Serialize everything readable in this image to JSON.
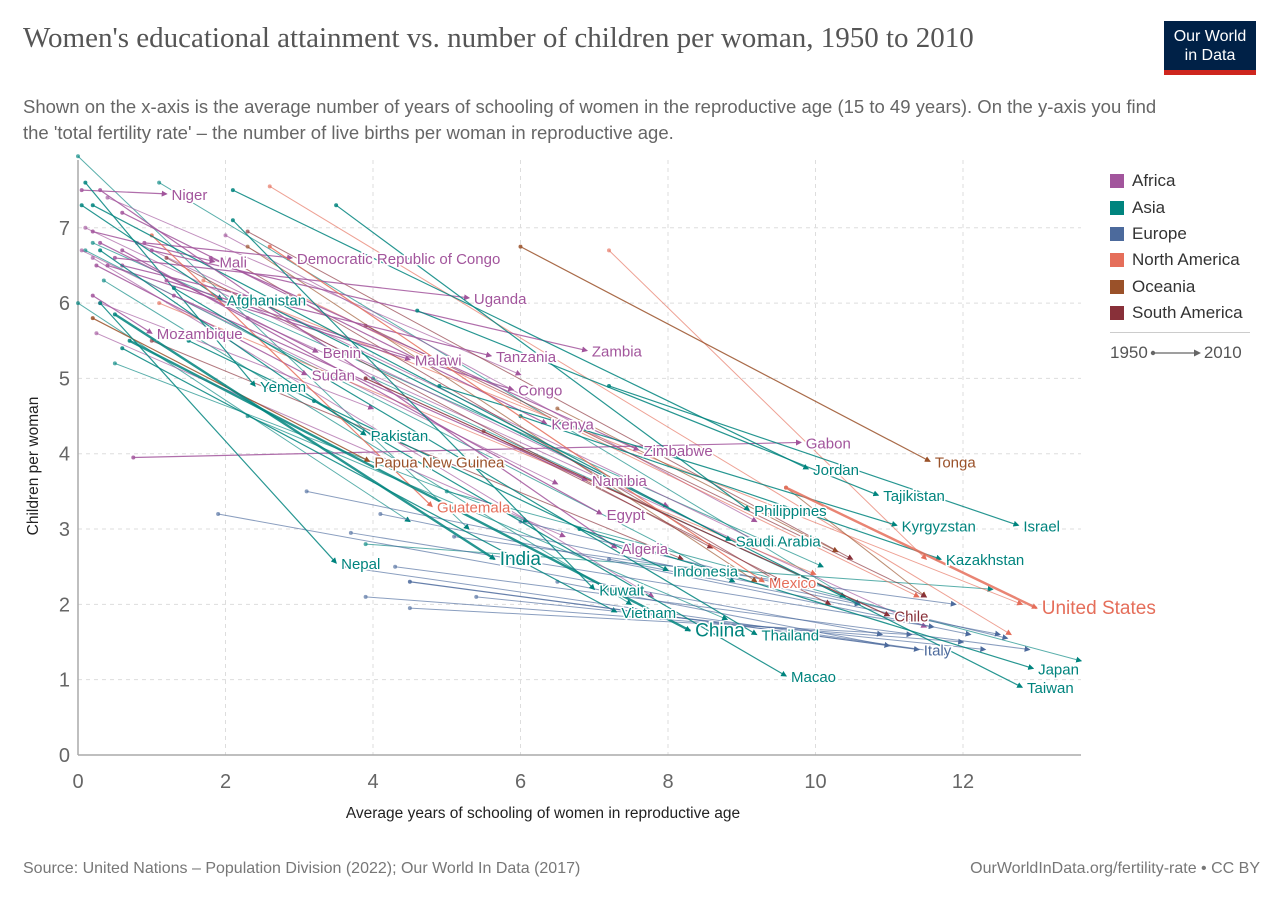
{
  "header": {
    "title": "Women's educational attainment vs. number of children per woman, 1950 to 2010",
    "subtitle": "Shown on the x-axis is the average number of years of schooling of women in the reproductive age (15 to 49 years). On the y-axis you find the 'total fertility rate' – the number of live births per woman in reproductive age.",
    "logo_line1": "Our World",
    "logo_line2": "in Data"
  },
  "legend": {
    "items": [
      {
        "label": "Africa",
        "color": "#a2559c"
      },
      {
        "label": "Asia",
        "color": "#00847e"
      },
      {
        "label": "Europe",
        "color": "#4c6a9c"
      },
      {
        "label": "North America",
        "color": "#e56e5a"
      },
      {
        "label": "Oceania",
        "color": "#9a5129"
      },
      {
        "label": "South America",
        "color": "#883039"
      }
    ],
    "time_start": "1950",
    "time_end": "2010"
  },
  "footer": {
    "source": "Source: United Nations – Population Division (2022); Our World In Data (2017)",
    "url": "OurWorldInData.org/fertility-rate • CC BY"
  },
  "chart_data": {
    "type": "scatter",
    "title": "Women's educational attainment vs. number of children per woman, 1950 to 2010",
    "xlabel": "Average years of schooling of women in reproductive age",
    "ylabel": "Children per woman",
    "xlim": [
      0,
      13.6
    ],
    "ylim": [
      0,
      7.9
    ],
    "xticks": [
      0,
      2,
      4,
      6,
      8,
      10,
      12
    ],
    "yticks": [
      0,
      1,
      2,
      3,
      4,
      5,
      6,
      7
    ],
    "grid": true,
    "legend_position": "right",
    "time_range": [
      "1950",
      "2010"
    ],
    "series": [
      {
        "name": "Niger",
        "region": "Africa",
        "start": [
          0.05,
          7.5
        ],
        "end": [
          1.2,
          7.45
        ],
        "label_size": "normal"
      },
      {
        "name": "Mali",
        "region": "Africa",
        "start": [
          0.2,
          6.95
        ],
        "end": [
          1.85,
          6.55
        ],
        "label_size": "normal"
      },
      {
        "name": "Democratic Republic of Congo",
        "region": "Africa",
        "start": [
          0.9,
          6.8
        ],
        "end": [
          2.9,
          6.6
        ],
        "label_size": "normal"
      },
      {
        "name": "Uganda",
        "region": "Africa",
        "start": [
          0.5,
          6.6
        ],
        "end": [
          5.3,
          6.07
        ],
        "label_size": "normal"
      },
      {
        "name": "Afghanistan",
        "region": "Asia",
        "start": [
          0.05,
          7.3
        ],
        "end": [
          1.95,
          6.05
        ],
        "label_size": "normal"
      },
      {
        "name": "Mozambique",
        "region": "Africa",
        "start": [
          0.2,
          6.1
        ],
        "end": [
          1.0,
          5.6
        ],
        "label_size": "normal"
      },
      {
        "name": "Benin",
        "region": "Africa",
        "start": [
          0.3,
          6.8
        ],
        "end": [
          3.25,
          5.35
        ],
        "label_size": "normal"
      },
      {
        "name": "Malawi",
        "region": "Africa",
        "start": [
          0.4,
          6.5
        ],
        "end": [
          4.5,
          5.25
        ],
        "label_size": "normal"
      },
      {
        "name": "Tanzania",
        "region": "Africa",
        "start": [
          0.6,
          6.5
        ],
        "end": [
          5.6,
          5.3
        ],
        "label_size": "normal"
      },
      {
        "name": "Zambia",
        "region": "Africa",
        "start": [
          1.0,
          6.7
        ],
        "end": [
          6.9,
          5.37
        ],
        "label_size": "normal"
      },
      {
        "name": "Sudan",
        "region": "Africa",
        "start": [
          0.25,
          6.5
        ],
        "end": [
          3.1,
          5.05
        ],
        "label_size": "normal"
      },
      {
        "name": "Yemen",
        "region": "Asia",
        "start": [
          0.1,
          7.6
        ],
        "end": [
          2.4,
          4.9
        ],
        "label_size": "normal"
      },
      {
        "name": "Congo",
        "region": "Africa",
        "start": [
          1.2,
          6.3
        ],
        "end": [
          5.9,
          4.85
        ],
        "label_size": "normal"
      },
      {
        "name": "Kenya",
        "region": "Africa",
        "start": [
          0.6,
          7.2
        ],
        "end": [
          6.35,
          4.4
        ],
        "label_size": "normal"
      },
      {
        "name": "Gabon",
        "region": "Africa",
        "start": [
          0.75,
          3.95
        ],
        "end": [
          9.8,
          4.15
        ],
        "label_size": "normal"
      },
      {
        "name": "Pakistan",
        "region": "Asia",
        "start": [
          0.3,
          6.7
        ],
        "end": [
          3.9,
          4.25
        ],
        "label_size": "normal"
      },
      {
        "name": "Zimbabwe",
        "region": "Africa",
        "start": [
          1.8,
          6.6
        ],
        "end": [
          7.6,
          4.05
        ],
        "label_size": "normal"
      },
      {
        "name": "Papua New Guinea",
        "region": "Oceania",
        "start": [
          0.2,
          5.8
        ],
        "end": [
          3.95,
          3.9
        ],
        "label_size": "normal"
      },
      {
        "name": "Tonga",
        "region": "Oceania",
        "start": [
          6.0,
          6.75
        ],
        "end": [
          11.55,
          3.9
        ],
        "label_size": "normal"
      },
      {
        "name": "Jordan",
        "region": "Asia",
        "start": [
          2.1,
          7.5
        ],
        "end": [
          9.9,
          3.8
        ],
        "label_size": "normal"
      },
      {
        "name": "Namibia",
        "region": "Africa",
        "start": [
          1.3,
          6.1
        ],
        "end": [
          6.9,
          3.65
        ],
        "label_size": "normal"
      },
      {
        "name": "Tajikistan",
        "region": "Asia",
        "start": [
          4.6,
          5.9
        ],
        "end": [
          10.85,
          3.45
        ],
        "label_size": "normal"
      },
      {
        "name": "Guatemala",
        "region": "North America",
        "start": [
          1.0,
          6.9
        ],
        "end": [
          4.8,
          3.3
        ],
        "label_size": "normal"
      },
      {
        "name": "Philippines",
        "region": "Asia",
        "start": [
          3.5,
          7.3
        ],
        "end": [
          9.1,
          3.25
        ],
        "label_size": "normal"
      },
      {
        "name": "Egypt",
        "region": "Africa",
        "start": [
          0.6,
          6.7
        ],
        "end": [
          7.1,
          3.2
        ],
        "label_size": "normal"
      },
      {
        "name": "Kyrgyzstan",
        "region": "Asia",
        "start": [
          4.9,
          4.9
        ],
        "end": [
          11.1,
          3.05
        ],
        "label_size": "normal"
      },
      {
        "name": "Israel",
        "region": "Asia",
        "start": [
          7.2,
          4.9
        ],
        "end": [
          12.75,
          3.05
        ],
        "label_size": "normal"
      },
      {
        "name": "Saudi Arabia",
        "region": "Asia",
        "start": [
          0.2,
          7.3
        ],
        "end": [
          8.85,
          2.85
        ],
        "label_size": "normal"
      },
      {
        "name": "Algeria",
        "region": "Africa",
        "start": [
          0.3,
          7.5
        ],
        "end": [
          7.3,
          2.75
        ],
        "label_size": "normal"
      },
      {
        "name": "Kazakhstan",
        "region": "Asia",
        "start": [
          6.0,
          4.5
        ],
        "end": [
          11.7,
          2.6
        ],
        "label_size": "normal"
      },
      {
        "name": "India",
        "region": "Asia",
        "start": [
          0.5,
          5.85
        ],
        "end": [
          5.65,
          2.6
        ],
        "label_size": "large"
      },
      {
        "name": "Nepal",
        "region": "Asia",
        "start": [
          0.3,
          6.0
        ],
        "end": [
          3.5,
          2.55
        ],
        "label_size": "normal"
      },
      {
        "name": "Indonesia",
        "region": "Asia",
        "start": [
          1.5,
          5.5
        ],
        "end": [
          8.0,
          2.45
        ],
        "label_size": "normal"
      },
      {
        "name": "Mexico",
        "region": "North America",
        "start": [
          2.6,
          6.75
        ],
        "end": [
          9.3,
          2.3
        ],
        "label_size": "normal"
      },
      {
        "name": "Kuwait",
        "region": "Asia",
        "start": [
          2.1,
          7.1
        ],
        "end": [
          7.0,
          2.2
        ],
        "label_size": "normal"
      },
      {
        "name": "United States",
        "region": "North America",
        "start": [
          9.6,
          3.55
        ],
        "end": [
          13.0,
          1.95
        ],
        "label_size": "large"
      },
      {
        "name": "Chile",
        "region": "South America",
        "start": [
          3.9,
          5.0
        ],
        "end": [
          11.0,
          1.85
        ],
        "label_size": "normal"
      },
      {
        "name": "Vietnam",
        "region": "Asia",
        "start": [
          0.6,
          5.4
        ],
        "end": [
          7.3,
          1.9
        ],
        "label_size": "normal"
      },
      {
        "name": "China",
        "region": "Asia",
        "start": [
          0.7,
          5.5
        ],
        "end": [
          8.3,
          1.65
        ],
        "label_size": "large"
      },
      {
        "name": "Thailand",
        "region": "Asia",
        "start": [
          1.3,
          6.2
        ],
        "end": [
          9.2,
          1.6
        ],
        "label_size": "normal"
      },
      {
        "name": "Italy",
        "region": "Europe",
        "start": [
          4.5,
          2.3
        ],
        "end": [
          11.4,
          1.4
        ],
        "label_size": "normal"
      },
      {
        "name": "Japan",
        "region": "Asia",
        "start": [
          6.8,
          3.0
        ],
        "end": [
          12.95,
          1.15
        ],
        "label_size": "normal"
      },
      {
        "name": "Macao",
        "region": "Asia",
        "start": [
          3.2,
          4.7
        ],
        "end": [
          9.6,
          1.05
        ],
        "label_size": "normal"
      },
      {
        "name": "Taiwan",
        "region": "Asia",
        "start": [
          2.5,
          6.0
        ],
        "end": [
          12.8,
          0.9
        ],
        "label_size": "normal"
      }
    ],
    "background_series": [
      {
        "region": "Asia",
        "start": [
          0.0,
          7.95
        ],
        "end": [
          5.3,
          3.0
        ]
      },
      {
        "region": "Asia",
        "start": [
          0.0,
          6.0
        ],
        "end": [
          4.5,
          3.1
        ]
      },
      {
        "region": "Asia",
        "start": [
          0.1,
          6.7
        ],
        "end": [
          8.9,
          2.3
        ]
      },
      {
        "region": "Asia",
        "start": [
          0.35,
          6.3
        ],
        "end": [
          7.5,
          2.0
        ]
      },
      {
        "region": "Asia",
        "start": [
          0.5,
          5.2
        ],
        "end": [
          6.1,
          3.1
        ]
      },
      {
        "region": "Asia",
        "start": [
          1.1,
          7.6
        ],
        "end": [
          10.6,
          2.0
        ]
      },
      {
        "region": "Asia",
        "start": [
          0.2,
          6.8
        ],
        "end": [
          10.1,
          2.5
        ]
      },
      {
        "region": "Asia",
        "start": [
          4.0,
          5.0
        ],
        "end": [
          10.4,
          2.1
        ]
      },
      {
        "region": "Asia",
        "start": [
          5.0,
          3.5
        ],
        "end": [
          13.6,
          1.25
        ]
      },
      {
        "region": "Asia",
        "start": [
          2.3,
          4.5
        ],
        "end": [
          8.8,
          1.8
        ]
      },
      {
        "region": "Asia",
        "start": [
          3.9,
          2.8
        ],
        "end": [
          12.4,
          2.2
        ]
      },
      {
        "region": "Africa",
        "start": [
          0.1,
          7.0
        ],
        "end": [
          8.0,
          3.3
        ]
      },
      {
        "region": "Africa",
        "start": [
          0.05,
          6.7
        ],
        "end": [
          6.5,
          3.6
        ]
      },
      {
        "region": "Africa",
        "start": [
          0.3,
          6.0
        ],
        "end": [
          4.0,
          4.6
        ]
      },
      {
        "region": "Africa",
        "start": [
          0.8,
          6.8
        ],
        "end": [
          9.3,
          2.8
        ]
      },
      {
        "region": "Africa",
        "start": [
          0.2,
          6.6
        ],
        "end": [
          7.8,
          2.1
        ]
      },
      {
        "region": "Africa",
        "start": [
          0.4,
          7.4
        ],
        "end": [
          6.0,
          5.05
        ]
      },
      {
        "region": "Africa",
        "start": [
          2.0,
          6.9
        ],
        "end": [
          9.2,
          3.1
        ]
      },
      {
        "region": "Africa",
        "start": [
          0.25,
          5.6
        ],
        "end": [
          6.6,
          2.9
        ]
      },
      {
        "region": "Africa",
        "start": [
          2.3,
          5.8
        ],
        "end": [
          11.5,
          1.7
        ]
      },
      {
        "region": "Europe",
        "start": [
          3.6,
          2.5
        ],
        "end": [
          11.8,
          1.35
        ]
      },
      {
        "region": "Europe",
        "start": [
          3.9,
          2.1
        ],
        "end": [
          12.0,
          1.5
        ]
      },
      {
        "region": "Europe",
        "start": [
          4.5,
          1.95
        ],
        "end": [
          11.3,
          1.6
        ]
      },
      {
        "region": "Europe",
        "start": [
          5.4,
          2.1
        ],
        "end": [
          12.3,
          1.4
        ]
      },
      {
        "region": "Europe",
        "start": [
          3.7,
          2.95
        ],
        "end": [
          11.6,
          1.7
        ]
      },
      {
        "region": "Europe",
        "start": [
          4.1,
          3.2
        ],
        "end": [
          12.1,
          1.6
        ]
      },
      {
        "region": "Europe",
        "start": [
          6.0,
          3.1
        ],
        "end": [
          12.6,
          1.55
        ]
      },
      {
        "region": "Europe",
        "start": [
          3.1,
          3.5
        ],
        "end": [
          10.6,
          2.0
        ]
      },
      {
        "region": "Europe",
        "start": [
          4.3,
          2.5
        ],
        "end": [
          12.9,
          1.4
        ]
      },
      {
        "region": "Europe",
        "start": [
          5.1,
          2.9
        ],
        "end": [
          11.9,
          2.0
        ]
      },
      {
        "region": "Europe",
        "start": [
          1.9,
          3.2
        ],
        "end": [
          10.9,
          1.6
        ]
      },
      {
        "region": "Europe",
        "start": [
          7.2,
          2.6
        ],
        "end": [
          12.5,
          1.6
        ]
      },
      {
        "region": "Europe",
        "start": [
          6.5,
          2.3
        ],
        "end": [
          11.0,
          1.45
        ]
      },
      {
        "region": "North America",
        "start": [
          2.6,
          7.55
        ],
        "end": [
          12.65,
          1.6
        ]
      },
      {
        "region": "North America",
        "start": [
          7.2,
          6.7
        ],
        "end": [
          11.5,
          2.6
        ]
      },
      {
        "region": "North America",
        "start": [
          1.1,
          6.0
        ],
        "end": [
          10.0,
          2.4
        ]
      },
      {
        "region": "North America",
        "start": [
          1.7,
          6.3
        ],
        "end": [
          12.8,
          2.0
        ]
      },
      {
        "region": "North America",
        "start": [
          3.0,
          6.1
        ],
        "end": [
          11.4,
          2.1
        ]
      },
      {
        "region": "Oceania",
        "start": [
          2.3,
          6.75
        ],
        "end": [
          9.2,
          2.3
        ]
      },
      {
        "region": "Oceania",
        "start": [
          6.5,
          4.6
        ],
        "end": [
          10.3,
          2.7
        ]
      },
      {
        "region": "Oceania",
        "start": [
          9.6,
          3.55
        ],
        "end": [
          11.5,
          2.1
        ]
      },
      {
        "region": "South America",
        "start": [
          2.3,
          6.95
        ],
        "end": [
          10.5,
          2.6
        ]
      },
      {
        "region": "South America",
        "start": [
          1.2,
          6.6
        ],
        "end": [
          8.6,
          2.75
        ]
      },
      {
        "region": "South America",
        "start": [
          3.9,
          5.7
        ],
        "end": [
          11.5,
          2.1
        ]
      },
      {
        "region": "South America",
        "start": [
          2.2,
          6.5
        ],
        "end": [
          9.5,
          2.3
        ]
      },
      {
        "region": "South America",
        "start": [
          5.5,
          4.3
        ],
        "end": [
          10.2,
          2.0
        ]
      },
      {
        "region": "South America",
        "start": [
          1.0,
          5.5
        ],
        "end": [
          8.2,
          2.6
        ]
      }
    ]
  }
}
